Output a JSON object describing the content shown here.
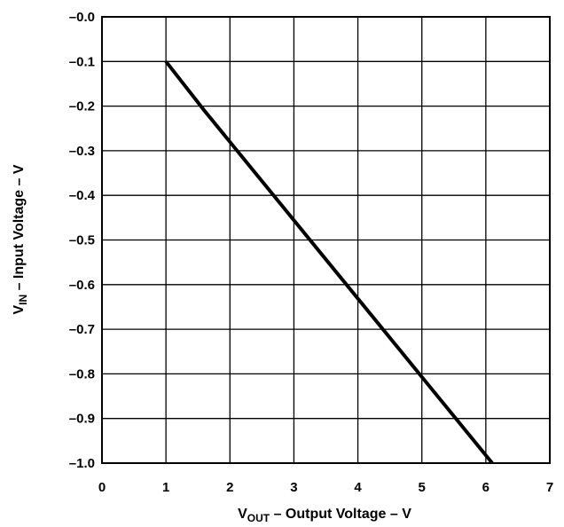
{
  "chart_data": {
    "type": "line",
    "xlabel": {
      "main": "V",
      "sub": "OUT",
      "rest": " – Output Voltage – V"
    },
    "ylabel": {
      "main": "V",
      "sub": "IN",
      "rest": " – Input Voltage – V"
    },
    "xlim": [
      0,
      7
    ],
    "ylim": [
      -1.0,
      0.0
    ],
    "x_ticks": [
      0,
      1,
      2,
      3,
      4,
      5,
      6,
      7
    ],
    "x_tick_labels": [
      "0",
      "1",
      "2",
      "3",
      "4",
      "5",
      "6",
      "7"
    ],
    "y_ticks": [
      0.0,
      -0.1,
      -0.2,
      -0.3,
      -0.4,
      -0.5,
      -0.6,
      -0.7,
      -0.8,
      -0.9,
      -1.0
    ],
    "y_tick_labels": [
      "–0.0",
      "–0.1",
      "–0.2",
      "–0.3",
      "–0.4",
      "–0.5",
      "–0.6",
      "–0.7",
      "–0.8",
      "–0.9",
      "–1.0"
    ],
    "grid": true,
    "series": [
      {
        "x": [
          1.0,
          1.6,
          6.1
        ],
        "y": [
          -0.1,
          -0.21,
          -1.0
        ],
        "color": "#000000"
      }
    ]
  }
}
